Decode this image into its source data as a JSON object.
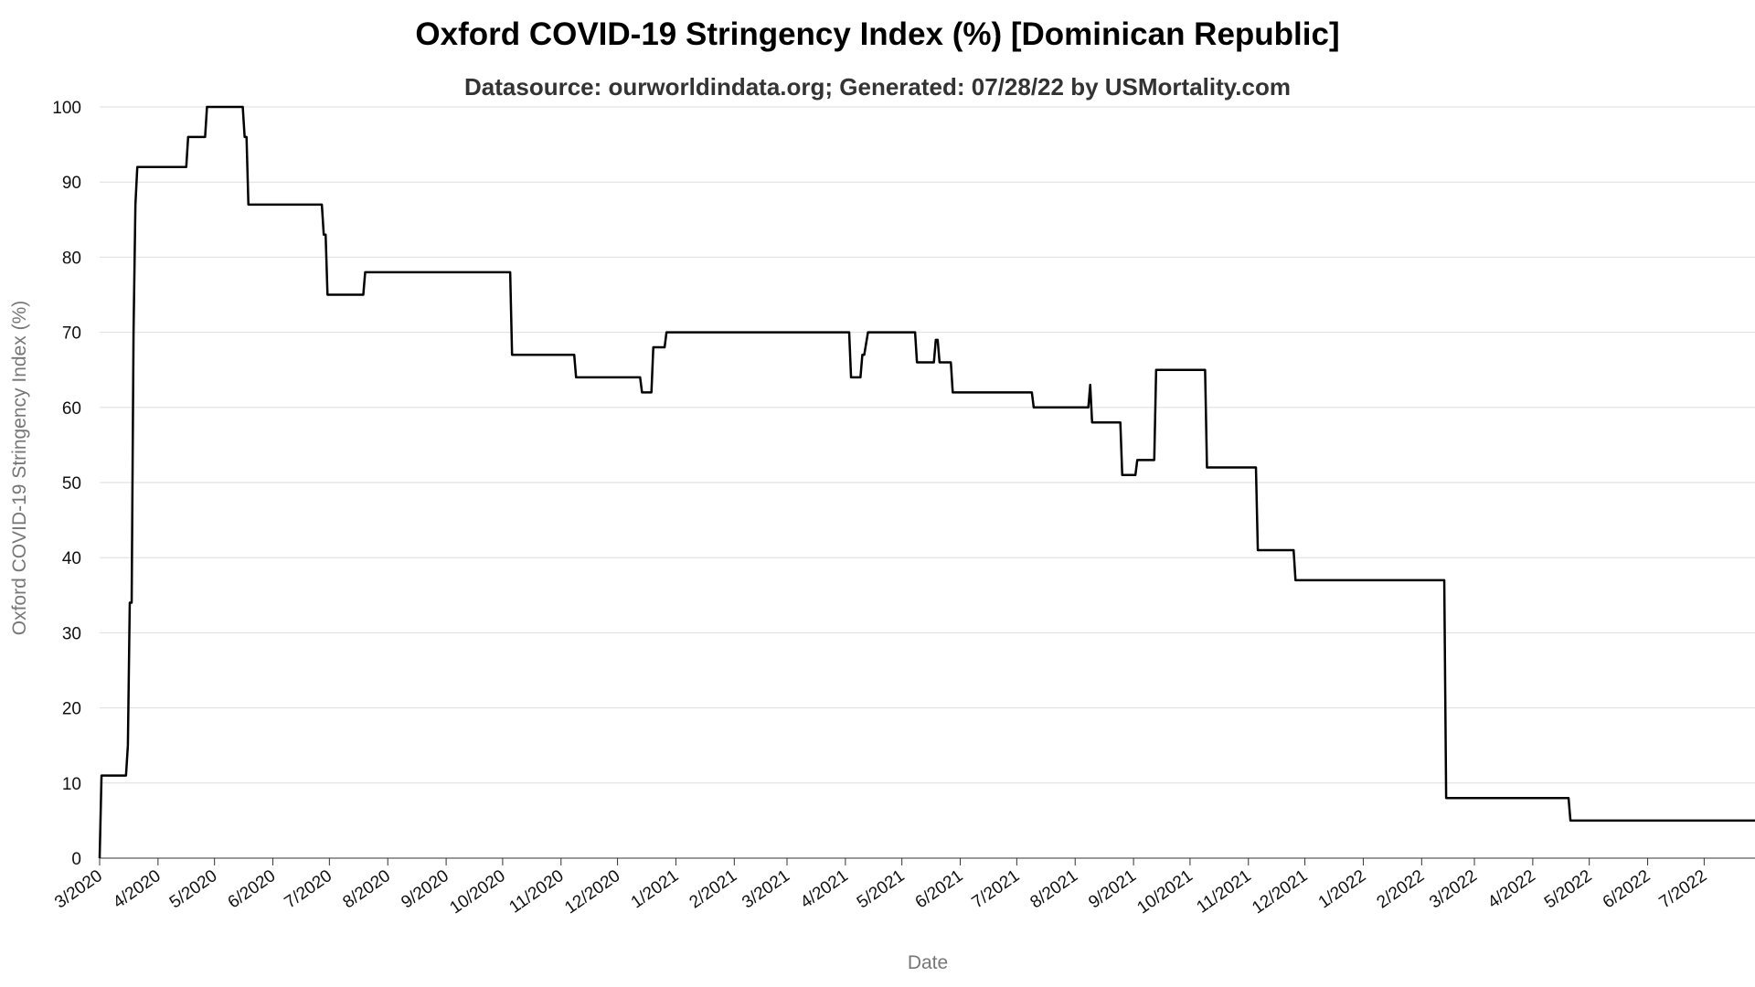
{
  "chart_data": {
    "type": "line",
    "title": "Oxford COVID-19 Stringency Index (%) [Dominican Republic]",
    "subtitle": "Datasource: ourworldindata.org; Generated: 07/28/22 by USMortality.com",
    "xlabel": "Date",
    "ylabel": "Oxford COVID-19 Stringency Index (%)",
    "ylim": [
      0,
      100
    ],
    "xlim": [
      "2020-03-01",
      "2022-07-28"
    ],
    "yticks": [
      0,
      10,
      20,
      30,
      40,
      50,
      60,
      70,
      80,
      90,
      100
    ],
    "xticks": [
      {
        "date": "2020-03-01",
        "label": "3/2020"
      },
      {
        "date": "2020-04-01",
        "label": "4/2020"
      },
      {
        "date": "2020-05-01",
        "label": "5/2020"
      },
      {
        "date": "2020-06-01",
        "label": "6/2020"
      },
      {
        "date": "2020-07-01",
        "label": "7/2020"
      },
      {
        "date": "2020-08-01",
        "label": "8/2020"
      },
      {
        "date": "2020-09-01",
        "label": "9/2020"
      },
      {
        "date": "2020-10-01",
        "label": "10/2020"
      },
      {
        "date": "2020-11-01",
        "label": "11/2020"
      },
      {
        "date": "2020-12-01",
        "label": "12/2020"
      },
      {
        "date": "2021-01-01",
        "label": "1/2021"
      },
      {
        "date": "2021-02-01",
        "label": "2/2021"
      },
      {
        "date": "2021-03-01",
        "label": "3/2021"
      },
      {
        "date": "2021-04-01",
        "label": "4/2021"
      },
      {
        "date": "2021-05-01",
        "label": "5/2021"
      },
      {
        "date": "2021-06-01",
        "label": "6/2021"
      },
      {
        "date": "2021-07-01",
        "label": "7/2021"
      },
      {
        "date": "2021-08-01",
        "label": "8/2021"
      },
      {
        "date": "2021-09-01",
        "label": "9/2021"
      },
      {
        "date": "2021-10-01",
        "label": "10/2021"
      },
      {
        "date": "2021-11-01",
        "label": "11/2021"
      },
      {
        "date": "2021-12-01",
        "label": "12/2021"
      },
      {
        "date": "2022-01-01",
        "label": "1/2022"
      },
      {
        "date": "2022-02-01",
        "label": "2/2022"
      },
      {
        "date": "2022-03-01",
        "label": "3/2022"
      },
      {
        "date": "2022-04-01",
        "label": "4/2022"
      },
      {
        "date": "2022-05-01",
        "label": "5/2022"
      },
      {
        "date": "2022-06-01",
        "label": "6/2022"
      },
      {
        "date": "2022-07-01",
        "label": "7/2022"
      }
    ],
    "grid": true,
    "line_color": "#000000",
    "series": [
      {
        "points": [
          [
            "2020-03-01",
            0
          ],
          [
            "2020-03-02",
            11
          ],
          [
            "2020-03-15",
            11
          ],
          [
            "2020-03-16",
            15
          ],
          [
            "2020-03-17",
            34
          ],
          [
            "2020-03-18",
            34
          ],
          [
            "2020-03-19",
            70
          ],
          [
            "2020-03-20",
            87
          ],
          [
            "2020-03-21",
            92
          ],
          [
            "2020-04-16",
            92
          ],
          [
            "2020-04-17",
            96
          ],
          [
            "2020-04-26",
            96
          ],
          [
            "2020-04-27",
            100
          ],
          [
            "2020-05-16",
            100
          ],
          [
            "2020-05-17",
            96
          ],
          [
            "2020-05-18",
            96
          ],
          [
            "2020-05-19",
            87
          ],
          [
            "2020-06-27",
            87
          ],
          [
            "2020-06-28",
            83
          ],
          [
            "2020-06-29",
            83
          ],
          [
            "2020-06-30",
            75
          ],
          [
            "2020-07-19",
            75
          ],
          [
            "2020-07-20",
            78
          ],
          [
            "2020-10-05",
            78
          ],
          [
            "2020-10-06",
            67
          ],
          [
            "2020-11-08",
            67
          ],
          [
            "2020-11-09",
            64
          ],
          [
            "2020-12-13",
            64
          ],
          [
            "2020-12-14",
            62
          ],
          [
            "2020-12-19",
            62
          ],
          [
            "2020-12-20",
            68
          ],
          [
            "2020-12-26",
            68
          ],
          [
            "2020-12-27",
            70
          ],
          [
            "2021-04-03",
            70
          ],
          [
            "2021-04-04",
            64
          ],
          [
            "2021-04-09",
            64
          ],
          [
            "2021-04-10",
            67
          ],
          [
            "2021-04-11",
            67
          ],
          [
            "2021-04-13",
            70
          ],
          [
            "2021-05-08",
            70
          ],
          [
            "2021-05-09",
            66
          ],
          [
            "2021-05-18",
            66
          ],
          [
            "2021-05-19",
            69
          ],
          [
            "2021-05-20",
            69
          ],
          [
            "2021-05-21",
            66
          ],
          [
            "2021-05-27",
            66
          ],
          [
            "2021-05-28",
            62
          ],
          [
            "2021-07-09",
            62
          ],
          [
            "2021-07-10",
            60
          ],
          [
            "2021-08-08",
            60
          ],
          [
            "2021-08-09",
            63
          ],
          [
            "2021-08-10",
            58
          ],
          [
            "2021-08-25",
            58
          ],
          [
            "2021-08-26",
            51
          ],
          [
            "2021-09-02",
            51
          ],
          [
            "2021-09-03",
            53
          ],
          [
            "2021-09-12",
            53
          ],
          [
            "2021-09-13",
            65
          ],
          [
            "2021-10-09",
            65
          ],
          [
            "2021-10-10",
            52
          ],
          [
            "2021-11-05",
            52
          ],
          [
            "2021-11-06",
            41
          ],
          [
            "2021-11-25",
            41
          ],
          [
            "2021-11-26",
            37
          ],
          [
            "2022-02-13",
            37
          ],
          [
            "2022-02-14",
            8
          ],
          [
            "2022-04-20",
            8
          ],
          [
            "2022-04-21",
            5
          ],
          [
            "2022-07-28",
            5
          ]
        ]
      }
    ]
  }
}
